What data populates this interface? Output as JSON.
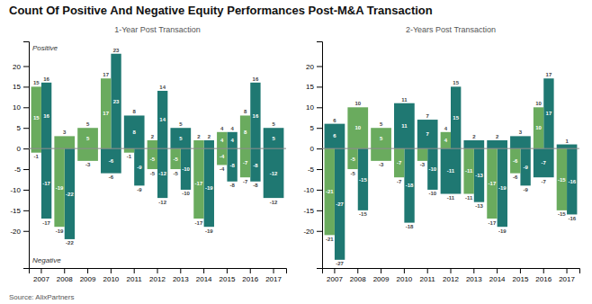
{
  "chart_data": [
    {
      "type": "bar",
      "title": "Count Of Positive And Negative Equity Performances Post-M&A Transaction",
      "subtitle": "1-Year Post Transaction",
      "source": "Source: AlixPartners",
      "annotations": [
        "Positive",
        "Negative"
      ],
      "categories": [
        "2007",
        "2008",
        "2009",
        "2010",
        "2011",
        "2012",
        "2013",
        "2014",
        "2015",
        "2016",
        "2017"
      ],
      "series": [
        {
          "color": "#1f7872",
          "values": [
            16,
            null,
            null,
            23,
            8,
            14,
            5,
            2,
            4,
            16,
            5
          ]
        },
        {
          "color": "#6aab5e",
          "values": [
            15,
            3,
            5,
            17,
            null,
            2,
            null,
            2,
            4,
            8,
            null
          ]
        },
        {
          "color": "#1f7872",
          "values": [
            -17,
            -22,
            null,
            -6,
            -9,
            -12,
            -10,
            -19,
            -8,
            -8,
            -12
          ]
        },
        {
          "color": "#6aab5e",
          "values": [
            -1,
            -19,
            -3,
            null,
            -1,
            -5,
            -5,
            -17,
            -4,
            -7,
            null
          ]
        }
      ],
      "ylim": [
        -29,
        26
      ],
      "yticks": [
        -20,
        -15,
        -10,
        -5,
        0,
        5,
        10,
        15,
        20
      ],
      "grid": false,
      "data_labels": true
    },
    {
      "type": "bar",
      "subtitle": "2-Years Post Transaction",
      "categories": [
        "2007",
        "2008",
        "2009",
        "2010",
        "2011",
        "2012",
        "2013",
        "2014",
        "2015",
        "2016",
        "2017"
      ],
      "series": [
        {
          "color": "#1f7872",
          "values": [
            6,
            null,
            null,
            11,
            7,
            15,
            2,
            2,
            3,
            17,
            1
          ]
        },
        {
          "color": "#6aab5e",
          "values": [
            null,
            10,
            5,
            null,
            null,
            4,
            null,
            null,
            null,
            10,
            null
          ]
        },
        {
          "color": "#1f7872",
          "values": [
            -27,
            -15,
            null,
            -18,
            -10,
            -11,
            -13,
            -19,
            -9,
            -7,
            -16
          ]
        },
        {
          "color": "#6aab5e",
          "values": [
            -21,
            -5,
            -3,
            -7,
            -3,
            null,
            -11,
            -17,
            -6,
            null,
            -15
          ]
        }
      ],
      "ylim": [
        -29,
        26
      ],
      "yticks": [
        -20,
        -15,
        -10,
        -5,
        0,
        5,
        10,
        15,
        20
      ],
      "grid": false,
      "data_labels": true
    }
  ]
}
